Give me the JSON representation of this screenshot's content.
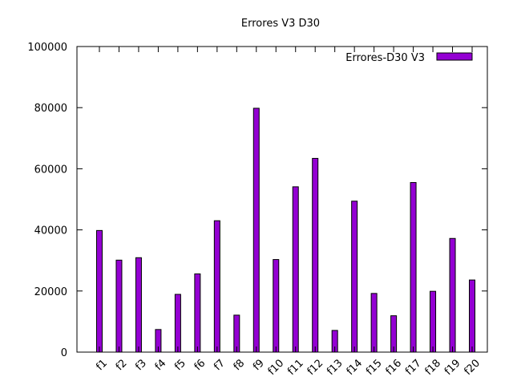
{
  "chart_data": {
    "type": "bar",
    "title": "Errores V3 D30",
    "xlabel": "",
    "ylabel": "",
    "ylim": [
      0,
      100000
    ],
    "yticks": [
      0,
      20000,
      40000,
      60000,
      80000,
      100000
    ],
    "grid": false,
    "legend_position": "top-right",
    "categories": [
      "f1",
      "f2",
      "f3",
      "f4",
      "f5",
      "f6",
      "f7",
      "f8",
      "f9",
      "f10",
      "f11",
      "f12",
      "f13",
      "f14",
      "f15",
      "f16",
      "f17",
      "f18",
      "f19",
      "f20"
    ],
    "series": [
      {
        "name": "Errores-D30 V3",
        "color": "#9400d3",
        "values": [
          39800,
          30100,
          30900,
          7400,
          18900,
          25600,
          43000,
          12100,
          79800,
          30300,
          54100,
          63400,
          7100,
          49400,
          19200,
          11900,
          55500,
          19900,
          37200,
          23600
        ]
      }
    ]
  }
}
